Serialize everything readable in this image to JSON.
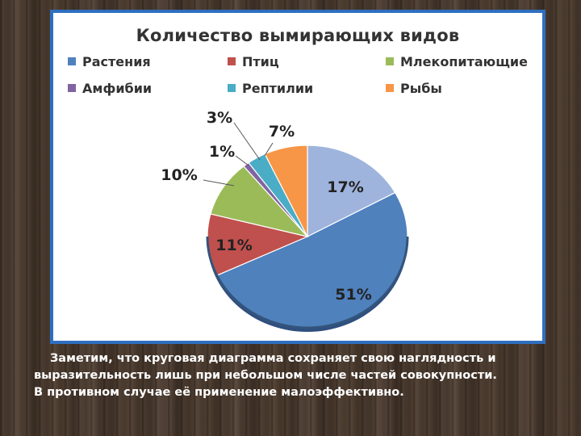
{
  "chart_data": {
    "type": "pie",
    "title": "Количество вымирающих видов",
    "legend_position": "top",
    "categories": [
      "Растения",
      "Птиц",
      "Млекопитающие",
      "Амфибии",
      "Рептилии",
      "Рыбы"
    ],
    "values": [
      51,
      11,
      10,
      1,
      3,
      7
    ],
    "other_value": 17,
    "labels": [
      "51%",
      "11%",
      "10%",
      "1%",
      "3%",
      "7%",
      "17%"
    ],
    "colors": [
      "#4f81bd",
      "#c0504d",
      "#9bbb59",
      "#8064a2",
      "#4bacc6",
      "#f79646",
      "#9eb4dc"
    ]
  },
  "caption": {
    "line1": "Заметим, что круговая диаграмма сохраняет свою наглядность и",
    "line2": "выразительность лишь при небольшом числе частей совокупности.",
    "line3": "В противном случае её применение малоэффективно."
  }
}
